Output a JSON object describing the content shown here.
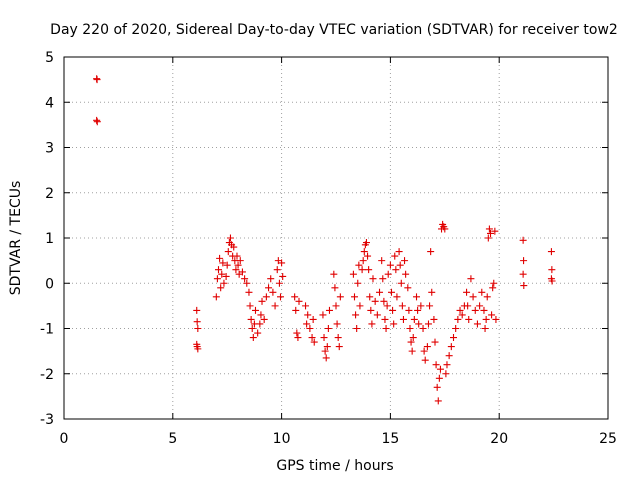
{
  "chart_data": {
    "type": "scatter",
    "title": "Day 220 of 2020, Sidereal Day-to-day VTEC variation (SDTVAR) for receiver tow2",
    "xlabel": "GPS time / hours",
    "ylabel": "SDTVAR / TECUs",
    "xlim": [
      0,
      25
    ],
    "ylim": [
      -3,
      5
    ],
    "xticks": [
      "0",
      "5",
      "10",
      "15",
      "20",
      "25"
    ],
    "yticks": [
      "-3",
      "-2",
      "-1",
      "0",
      "1",
      "2",
      "3",
      "4",
      "5"
    ],
    "grid": true,
    "legend": "none",
    "marker": "+",
    "color": "#e00000",
    "series": [
      {
        "name": "SDTVAR",
        "points": [
          [
            1.5,
            4.52
          ],
          [
            1.52,
            4.5
          ],
          [
            1.5,
            3.6
          ],
          [
            1.53,
            3.57
          ],
          [
            6.1,
            -0.6
          ],
          [
            6.12,
            -0.85
          ],
          [
            6.15,
            -1.0
          ],
          [
            6.1,
            -1.35
          ],
          [
            6.15,
            -1.45
          ],
          [
            6.12,
            -1.4
          ],
          [
            7.0,
            -0.3
          ],
          [
            7.05,
            0.1
          ],
          [
            7.1,
            0.3
          ],
          [
            7.15,
            0.55
          ],
          [
            7.2,
            -0.1
          ],
          [
            7.25,
            0.2
          ],
          [
            7.3,
            0.45
          ],
          [
            7.35,
            0.0
          ],
          [
            7.45,
            0.15
          ],
          [
            7.5,
            0.4
          ],
          [
            7.55,
            0.7
          ],
          [
            7.6,
            0.9
          ],
          [
            7.65,
            1.0
          ],
          [
            7.7,
            0.85
          ],
          [
            7.75,
            0.6
          ],
          [
            7.8,
            0.8
          ],
          [
            7.85,
            0.5
          ],
          [
            7.9,
            0.3
          ],
          [
            7.95,
            0.6
          ],
          [
            8.0,
            0.4
          ],
          [
            8.05,
            0.2
          ],
          [
            8.1,
            0.5
          ],
          [
            8.2,
            0.25
          ],
          [
            8.3,
            0.1
          ],
          [
            8.4,
            0.0
          ],
          [
            8.5,
            -0.2
          ],
          [
            8.55,
            -0.5
          ],
          [
            8.6,
            -0.8
          ],
          [
            8.65,
            -1.0
          ],
          [
            8.7,
            -1.2
          ],
          [
            8.75,
            -0.9
          ],
          [
            8.8,
            -0.6
          ],
          [
            8.9,
            -1.1
          ],
          [
            9.0,
            -0.9
          ],
          [
            9.05,
            -0.7
          ],
          [
            9.1,
            -0.4
          ],
          [
            9.2,
            -0.8
          ],
          [
            9.3,
            -0.3
          ],
          [
            9.4,
            -0.1
          ],
          [
            9.5,
            0.1
          ],
          [
            9.6,
            -0.2
          ],
          [
            9.7,
            -0.5
          ],
          [
            9.8,
            0.3
          ],
          [
            9.85,
            0.5
          ],
          [
            9.9,
            0.0
          ],
          [
            9.95,
            -0.3
          ],
          [
            10.0,
            0.45
          ],
          [
            10.05,
            0.15
          ],
          [
            10.6,
            -0.3
          ],
          [
            10.65,
            -0.6
          ],
          [
            10.7,
            -1.1
          ],
          [
            10.75,
            -1.2
          ],
          [
            10.8,
            -0.4
          ],
          [
            11.1,
            -0.5
          ],
          [
            11.15,
            -0.9
          ],
          [
            11.2,
            -0.7
          ],
          [
            11.3,
            -1.0
          ],
          [
            11.4,
            -1.2
          ],
          [
            11.5,
            -1.3
          ],
          [
            11.45,
            -0.8
          ],
          [
            11.9,
            -0.7
          ],
          [
            11.95,
            -1.2
          ],
          [
            12.0,
            -1.5
          ],
          [
            12.05,
            -1.65
          ],
          [
            12.1,
            -1.4
          ],
          [
            12.15,
            -1.0
          ],
          [
            12.2,
            -0.6
          ],
          [
            12.4,
            0.2
          ],
          [
            12.45,
            -0.1
          ],
          [
            12.5,
            -0.5
          ],
          [
            12.55,
            -0.9
          ],
          [
            12.6,
            -1.2
          ],
          [
            12.65,
            -1.4
          ],
          [
            12.7,
            -0.3
          ],
          [
            13.3,
            0.2
          ],
          [
            13.35,
            -0.3
          ],
          [
            13.4,
            -0.7
          ],
          [
            13.45,
            -1.0
          ],
          [
            13.5,
            0.0
          ],
          [
            13.55,
            0.4
          ],
          [
            13.6,
            -0.5
          ],
          [
            13.7,
            0.3
          ],
          [
            13.75,
            0.5
          ],
          [
            13.8,
            0.7
          ],
          [
            13.85,
            0.85
          ],
          [
            13.9,
            0.9
          ],
          [
            13.95,
            0.6
          ],
          [
            14.0,
            0.3
          ],
          [
            14.05,
            -0.3
          ],
          [
            14.1,
            -0.6
          ],
          [
            14.15,
            -0.9
          ],
          [
            14.2,
            0.1
          ],
          [
            14.3,
            -0.4
          ],
          [
            14.4,
            -0.7
          ],
          [
            14.5,
            -0.2
          ],
          [
            14.6,
            0.5
          ],
          [
            14.65,
            0.1
          ],
          [
            14.7,
            -0.4
          ],
          [
            14.75,
            -0.8
          ],
          [
            14.8,
            -1.0
          ],
          [
            14.85,
            -0.5
          ],
          [
            14.9,
            0.2
          ],
          [
            15.0,
            0.4
          ],
          [
            15.05,
            -0.2
          ],
          [
            15.1,
            -0.6
          ],
          [
            15.15,
            -0.9
          ],
          [
            15.2,
            0.6
          ],
          [
            15.25,
            0.3
          ],
          [
            15.3,
            -0.3
          ],
          [
            15.4,
            0.7
          ],
          [
            15.45,
            0.4
          ],
          [
            15.5,
            0.0
          ],
          [
            15.55,
            -0.5
          ],
          [
            15.6,
            -0.8
          ],
          [
            15.65,
            0.5
          ],
          [
            15.7,
            0.2
          ],
          [
            15.8,
            -0.1
          ],
          [
            15.85,
            -0.6
          ],
          [
            15.9,
            -1.0
          ],
          [
            15.95,
            -1.3
          ],
          [
            16.0,
            -1.5
          ],
          [
            16.05,
            -1.2
          ],
          [
            16.1,
            -0.8
          ],
          [
            16.2,
            -0.3
          ],
          [
            16.25,
            -0.6
          ],
          [
            16.3,
            -0.9
          ],
          [
            16.4,
            -0.5
          ],
          [
            16.5,
            -1.0
          ],
          [
            16.55,
            -1.5
          ],
          [
            16.6,
            -1.7
          ],
          [
            16.7,
            -1.4
          ],
          [
            16.75,
            -0.9
          ],
          [
            16.8,
            -0.5
          ],
          [
            16.85,
            0.7
          ],
          [
            16.9,
            -0.2
          ],
          [
            17.0,
            -0.8
          ],
          [
            17.05,
            -1.3
          ],
          [
            17.1,
            -1.8
          ],
          [
            17.15,
            -2.3
          ],
          [
            17.2,
            -2.6
          ],
          [
            17.25,
            -2.1
          ],
          [
            17.3,
            -1.9
          ],
          [
            17.35,
            1.2
          ],
          [
            17.4,
            1.3
          ],
          [
            17.45,
            1.25
          ],
          [
            17.5,
            1.2
          ],
          [
            17.55,
            -2.0
          ],
          [
            17.6,
            -1.8
          ],
          [
            17.7,
            -1.6
          ],
          [
            17.8,
            -1.4
          ],
          [
            17.9,
            -1.2
          ],
          [
            18.0,
            -1.0
          ],
          [
            18.1,
            -0.8
          ],
          [
            18.2,
            -0.6
          ],
          [
            18.3,
            -0.7
          ],
          [
            18.4,
            -0.5
          ],
          [
            18.5,
            -0.2
          ],
          [
            18.55,
            -0.5
          ],
          [
            18.6,
            -0.8
          ],
          [
            18.7,
            0.1
          ],
          [
            18.8,
            -0.3
          ],
          [
            18.9,
            -0.6
          ],
          [
            19.0,
            -0.9
          ],
          [
            19.1,
            -0.5
          ],
          [
            19.2,
            -0.2
          ],
          [
            19.3,
            -0.6
          ],
          [
            19.35,
            -1.0
          ],
          [
            19.4,
            -0.8
          ],
          [
            19.45,
            -0.3
          ],
          [
            19.5,
            1.0
          ],
          [
            19.55,
            1.2
          ],
          [
            19.6,
            1.1
          ],
          [
            19.65,
            -0.7
          ],
          [
            19.7,
            -0.1
          ],
          [
            19.75,
            0.0
          ],
          [
            19.8,
            1.15
          ],
          [
            19.85,
            -0.8
          ],
          [
            21.1,
            0.95
          ],
          [
            21.12,
            0.5
          ],
          [
            21.1,
            0.2
          ],
          [
            21.13,
            -0.05
          ],
          [
            22.4,
            0.7
          ],
          [
            22.42,
            0.3
          ],
          [
            22.4,
            0.1
          ],
          [
            22.43,
            0.05
          ]
        ]
      }
    ]
  }
}
